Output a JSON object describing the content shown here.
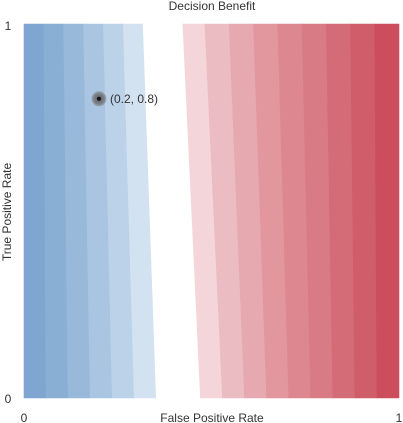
{
  "chart_data": {
    "type": "heatmap",
    "title": "Decision Benefit",
    "xlabel": "False Positive Rate",
    "ylabel": "True Positive Rate",
    "xlim": [
      0,
      1
    ],
    "ylim": [
      0,
      1
    ],
    "x_ticks": [
      "0",
      "1"
    ],
    "y_ticks": [
      "0",
      "1"
    ],
    "grid": false,
    "legend": "none",
    "colormap": {
      "low": "#7fa6d1",
      "mid": "#ffffff",
      "high": "#cc4e5c"
    },
    "bands": {
      "count": 17,
      "neutral_x_bottom": 0.43,
      "neutral_x_top": 0.38,
      "colors": [
        "#7fa6d1",
        "#8aafd5",
        "#98b9da",
        "#a9c5e1",
        "#bcd2e8",
        "#d3e2f1",
        "#ffffff",
        "#ffffff",
        "#f4d5da",
        "#ebbcc2",
        "#e6a9b0",
        "#e2979f",
        "#dd8891",
        "#d87b85",
        "#d46c77",
        "#cf5e6a",
        "#cc4e5c"
      ]
    },
    "points": [
      {
        "x": 0.2,
        "y": 0.8,
        "label": "(0.2, 0.8)"
      }
    ]
  }
}
